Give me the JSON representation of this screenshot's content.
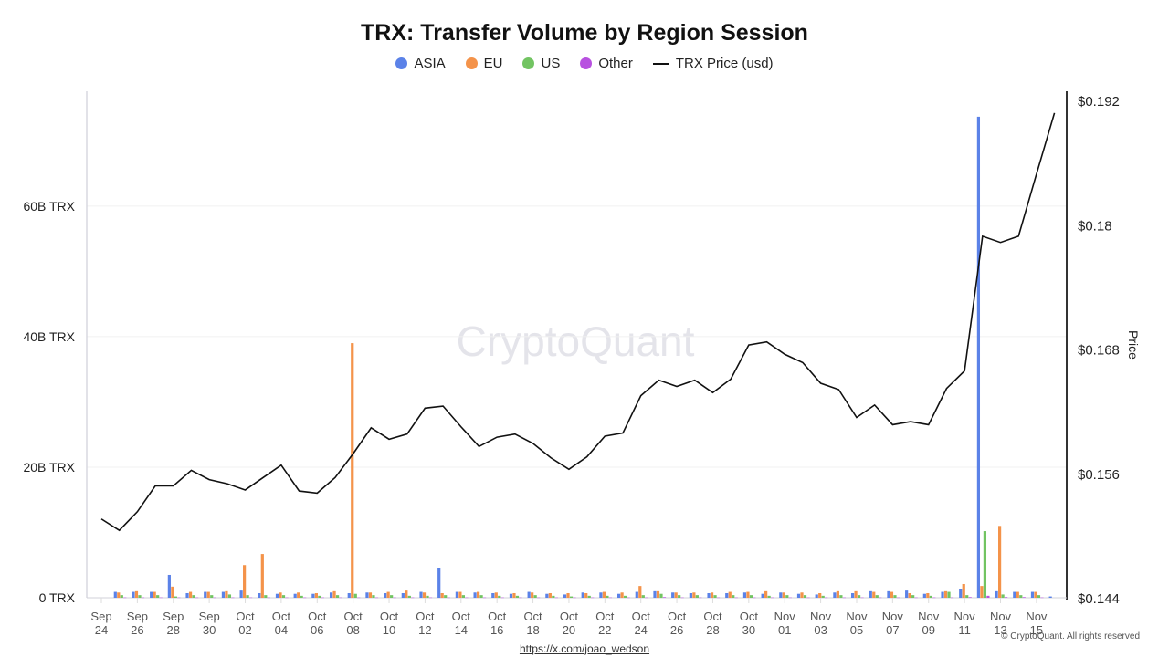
{
  "chart_data": {
    "type": "bar+line",
    "title": "TRX: Transfer Volume by Region Session",
    "legend": [
      {
        "name": "ASIA",
        "color": "#5b82e8",
        "marker": "dot"
      },
      {
        "name": "EU",
        "color": "#f4934a",
        "marker": "dot"
      },
      {
        "name": "US",
        "color": "#72c462",
        "marker": "dot"
      },
      {
        "name": "Other",
        "color": "#b851e0",
        "marker": "dot"
      },
      {
        "name": "TRX Price (usd)",
        "color": "#111111",
        "marker": "line"
      }
    ],
    "legend_placement": "top-center",
    "start_date": "Sep 24",
    "x_tick_labels": [
      [
        "Sep",
        "24"
      ],
      [
        "Sep",
        "26"
      ],
      [
        "Sep",
        "28"
      ],
      [
        "Sep",
        "30"
      ],
      [
        "Oct",
        "02"
      ],
      [
        "Oct",
        "04"
      ],
      [
        "Oct",
        "06"
      ],
      [
        "Oct",
        "08"
      ],
      [
        "Oct",
        "10"
      ],
      [
        "Oct",
        "12"
      ],
      [
        "Oct",
        "14"
      ],
      [
        "Oct",
        "16"
      ],
      [
        "Oct",
        "18"
      ],
      [
        "Oct",
        "20"
      ],
      [
        "Oct",
        "22"
      ],
      [
        "Oct",
        "24"
      ],
      [
        "Oct",
        "26"
      ],
      [
        "Oct",
        "28"
      ],
      [
        "Oct",
        "30"
      ],
      [
        "Nov",
        "01"
      ],
      [
        "Nov",
        "03"
      ],
      [
        "Nov",
        "05"
      ],
      [
        "Nov",
        "07"
      ],
      [
        "Nov",
        "09"
      ],
      [
        "Nov",
        "11"
      ],
      [
        "Nov",
        "13"
      ],
      [
        "Nov",
        "15"
      ]
    ],
    "y_left": {
      "ticks": [
        0,
        20,
        40,
        60
      ],
      "tick_labels": [
        "0 TRX",
        "20B TRX",
        "40B TRX",
        "60B TRX"
      ],
      "unit": "B TRX",
      "range": [
        0,
        77.6
      ]
    },
    "y_right": {
      "label": "Price",
      "ticks": [
        0.144,
        0.156,
        0.168,
        0.18,
        0.192
      ],
      "tick_labels": [
        "$0.144",
        "$0.156",
        "$0.168",
        "$0.18",
        "$0.192"
      ],
      "range": [
        0.144,
        0.1929
      ]
    },
    "grid": "horizontal",
    "series": [
      {
        "name": "ASIA",
        "axis": "left",
        "values": [
          0,
          0.9,
          0.9,
          0.9,
          3.5,
          0.7,
          0.9,
          0.9,
          1.1,
          0.7,
          0.6,
          0.6,
          0.6,
          0.8,
          0.7,
          0.8,
          0.7,
          0.7,
          0.9,
          4.5,
          0.9,
          0.8,
          0.7,
          0.6,
          0.9,
          0.6,
          0.5,
          0.8,
          0.8,
          0.6,
          0.9,
          1.0,
          0.8,
          0.7,
          0.7,
          0.7,
          0.8,
          0.6,
          0.8,
          0.6,
          0.5,
          0.8,
          0.7,
          1.0,
          1.0,
          1.1,
          0.6,
          0.9,
          1.3,
          73.7,
          1.0,
          0.9,
          0.9,
          0.2
        ]
      },
      {
        "name": "EU",
        "axis": "left",
        "values": [
          0,
          0.8,
          1.0,
          0.9,
          1.7,
          0.9,
          0.9,
          1.0,
          5.0,
          6.7,
          0.8,
          0.8,
          0.7,
          1.0,
          39,
          0.8,
          0.9,
          1.1,
          0.8,
          0.7,
          0.9,
          0.9,
          0.8,
          0.7,
          0.8,
          0.7,
          0.7,
          0.7,
          0.9,
          0.8,
          1.8,
          1.0,
          0.8,
          0.8,
          0.8,
          0.9,
          0.9,
          1.0,
          0.8,
          0.8,
          0.7,
          1.0,
          1.0,
          0.9,
          0.9,
          0.7,
          0.7,
          1.0,
          2.1,
          1.8,
          11.0,
          0.9,
          0.9,
          0
        ]
      },
      {
        "name": "US",
        "axis": "left",
        "values": [
          0,
          0.4,
          0.4,
          0.4,
          0.2,
          0.4,
          0.4,
          0.5,
          0.4,
          0.4,
          0.4,
          0.3,
          0.3,
          0.4,
          0.6,
          0.4,
          0.4,
          0.3,
          0.3,
          0.4,
          0.4,
          0.4,
          0.3,
          0.3,
          0.4,
          0.3,
          0.2,
          0.3,
          0.3,
          0.3,
          0.4,
          0.6,
          0.4,
          0.4,
          0.4,
          0.4,
          0.4,
          0.3,
          0.4,
          0.4,
          0.3,
          0.4,
          0.4,
          0.4,
          0.4,
          0.4,
          0.3,
          0.9,
          0.4,
          10.2,
          0.5,
          0.4,
          0.4,
          0
        ]
      },
      {
        "name": "Other",
        "axis": "left",
        "values": [
          0,
          0.05,
          0.05,
          0.05,
          0.05,
          0.05,
          0.05,
          0.05,
          0.05,
          0.05,
          0.05,
          0.05,
          0.05,
          0.05,
          0.05,
          0.05,
          0.05,
          0.05,
          0.05,
          0.05,
          0.05,
          0.05,
          0.05,
          0.05,
          0.05,
          0.05,
          0.05,
          0.05,
          0.05,
          0.05,
          0.05,
          0.1,
          0.05,
          0.05,
          0.05,
          0.05,
          0.05,
          0.05,
          0.05,
          0.05,
          0.05,
          0.05,
          0.05,
          0.05,
          0.05,
          0.05,
          0.05,
          0.05,
          0.1,
          0.3,
          0.1,
          0.1,
          0.05,
          0
        ]
      },
      {
        "name": "TRX Price (usd)",
        "axis": "right",
        "type": "line",
        "values": [
          0.1516,
          0.1505,
          0.1523,
          0.1548,
          0.1548,
          0.1563,
          0.1554,
          0.155,
          0.1544,
          0.1556,
          0.1568,
          0.1543,
          0.1541,
          0.1556,
          0.1579,
          0.1604,
          0.1593,
          0.1598,
          0.1623,
          0.1625,
          0.1605,
          0.1586,
          0.1595,
          0.1598,
          0.1589,
          0.1575,
          0.1564,
          0.1576,
          0.1596,
          0.1599,
          0.1635,
          0.165,
          0.1644,
          0.165,
          0.1638,
          0.1651,
          0.1684,
          0.1687,
          0.1675,
          0.1667,
          0.1647,
          0.1641,
          0.1614,
          0.1626,
          0.1607,
          0.161,
          0.1607,
          0.1642,
          0.1659,
          0.1789,
          0.1783,
          0.1789,
          0.1849,
          0.1908
        ]
      }
    ],
    "watermark": "CryptoQuant",
    "credit": "https://x.com/joao_wedson",
    "copyright": "© CryptoQuant. All rights reserved"
  }
}
